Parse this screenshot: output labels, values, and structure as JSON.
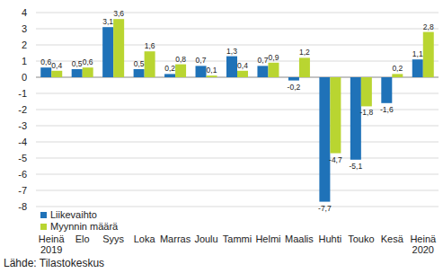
{
  "chart_data": {
    "type": "bar",
    "categories": [
      "Heinä 2019",
      "Elo",
      "Syys",
      "Loka",
      "Marras",
      "Joulu",
      "Tammi",
      "Helmi",
      "Maalis",
      "Huhti",
      "Touko",
      "Kesä",
      "Heinä 2020"
    ],
    "series": [
      {
        "name": "Liikevaihto",
        "color": "#1f72b8",
        "values": [
          0.6,
          0.5,
          3.1,
          0.5,
          0.2,
          0.7,
          1.3,
          0.7,
          -0.2,
          -7.7,
          -5.1,
          -1.6,
          1.1
        ],
        "value_labels": [
          "0,6",
          "0,5",
          "3,1",
          "0,5",
          "0,2",
          "0,7",
          "1,3",
          "0,7",
          "-0,2",
          "-7,7",
          "-5,1",
          "-1,6",
          "1,1"
        ]
      },
      {
        "name": "Myynnin määrä",
        "color": "#b9d531",
        "values": [
          0.4,
          0.6,
          3.6,
          1.6,
          0.8,
          0.1,
          0.4,
          0.9,
          1.2,
          -4.7,
          -1.8,
          0.2,
          2.8
        ],
        "value_labels": [
          "0,4",
          "0,6",
          "3,6",
          "1,6",
          "0,8",
          "0,1",
          "0,4",
          "0,9",
          "1,2",
          "-4,7",
          "-1,8",
          "0,2",
          "2,8"
        ]
      }
    ],
    "ylim": [
      -8,
      4
    ],
    "yticks": [
      -8,
      -7,
      -6,
      -5,
      -4,
      -3,
      -2,
      -1,
      0,
      1,
      2,
      3,
      4
    ],
    "grid": true,
    "data_labels": true,
    "legend": "bottom-left",
    "source": "Lähde: Tilastokeskus"
  }
}
